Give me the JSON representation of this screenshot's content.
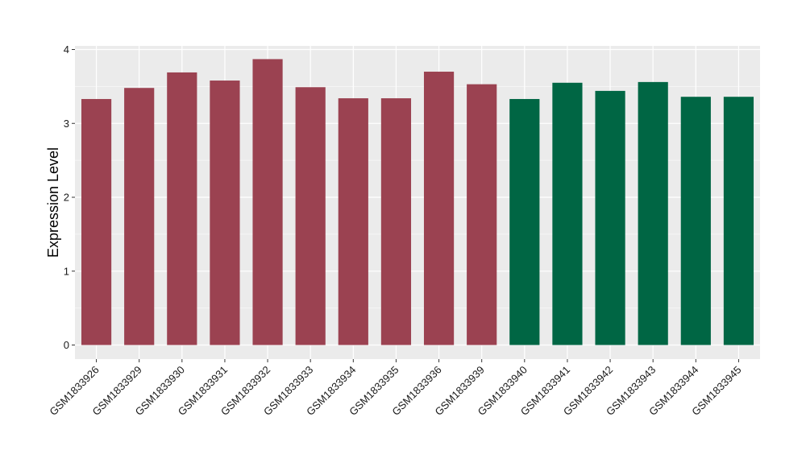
{
  "chart_data": {
    "type": "bar",
    "title": "",
    "xlabel": "",
    "ylabel": "Expression Level",
    "ylim": [
      0,
      4
    ],
    "yticks": [
      0,
      1,
      2,
      3,
      4
    ],
    "grid": true,
    "legend": "none",
    "categories": [
      "GSM1833926",
      "GSM1833929",
      "GSM1833930",
      "GSM1833931",
      "GSM1833932",
      "GSM1833933",
      "GSM1833934",
      "GSM1833935",
      "GSM1833936",
      "GSM1833939",
      "GSM1833940",
      "GSM1833941",
      "GSM1833942",
      "GSM1833943",
      "GSM1833944",
      "GSM1833945"
    ],
    "values": [
      3.33,
      3.48,
      3.69,
      3.58,
      3.87,
      3.49,
      3.34,
      3.34,
      3.7,
      3.53,
      3.33,
      3.55,
      3.44,
      3.56,
      3.36,
      3.36
    ],
    "groups": [
      "A",
      "A",
      "A",
      "A",
      "A",
      "A",
      "A",
      "A",
      "A",
      "A",
      "B",
      "B",
      "B",
      "B",
      "B",
      "B"
    ],
    "colors": {
      "A": "#9b4251",
      "B": "#006644"
    },
    "panel_background": "#ebebeb",
    "grid_color": "#ffffff"
  }
}
